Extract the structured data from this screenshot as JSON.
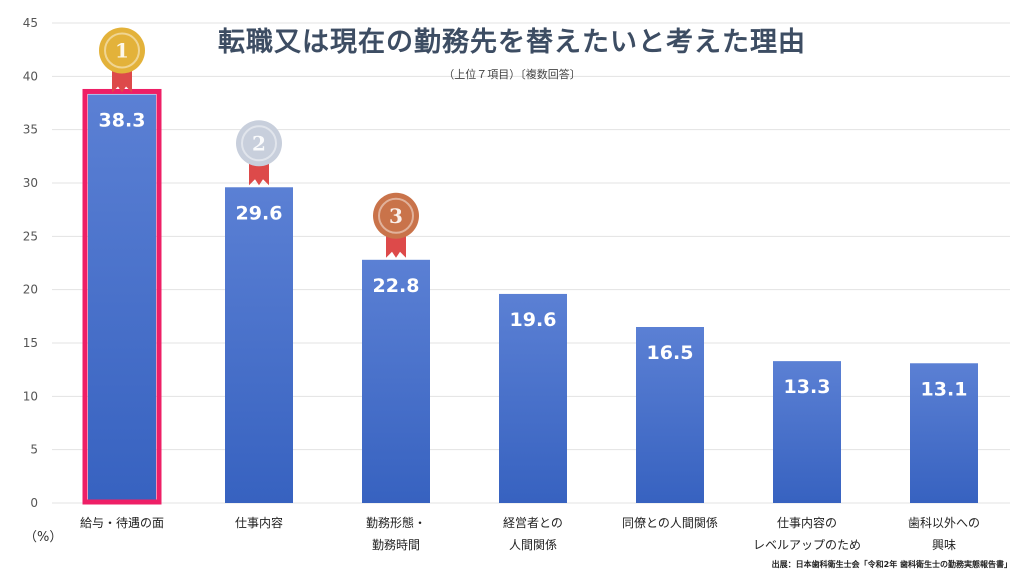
{
  "title": "転職又は現在の勤務先を替えたいと考えた理由",
  "subtitle": "（上位７項目）〔複数回答〕",
  "unit": "（%）",
  "source": "出展：日本歯科衛生士会「令和2年 歯科衛生士の勤務実態報告書」",
  "colors": {
    "bar_top": "#5b80d4",
    "bar_bottom": "#3762c0",
    "highlight": "#ee1f66",
    "grid": "#e3e3e3",
    "gold": "#e3b23a",
    "silver": "#c8cfdc",
    "bronze": "#c9734a",
    "ribbon": "#dd4a4a"
  },
  "medals": [
    "1",
    "2",
    "3"
  ],
  "chart_data": {
    "type": "bar",
    "title": "転職又は現在の勤務先を替えたいと考えた理由",
    "ylabel": "（%）",
    "ylim": [
      0,
      45
    ],
    "yticks": [
      0,
      5,
      10,
      15,
      20,
      25,
      30,
      35,
      40,
      45
    ],
    "grid": true,
    "categories": [
      [
        "給与・待遇の面"
      ],
      [
        "仕事内容"
      ],
      [
        "勤務形態・",
        "勤務時間"
      ],
      [
        "経営者との",
        "人間関係"
      ],
      [
        "同僚との人間関係"
      ],
      [
        "仕事内容の",
        "レベルアップのため"
      ],
      [
        "歯科以外への",
        "興味"
      ]
    ],
    "values": [
      38.3,
      29.6,
      22.8,
      19.6,
      16.5,
      13.3,
      13.1
    ],
    "highlighted_index": 0
  }
}
